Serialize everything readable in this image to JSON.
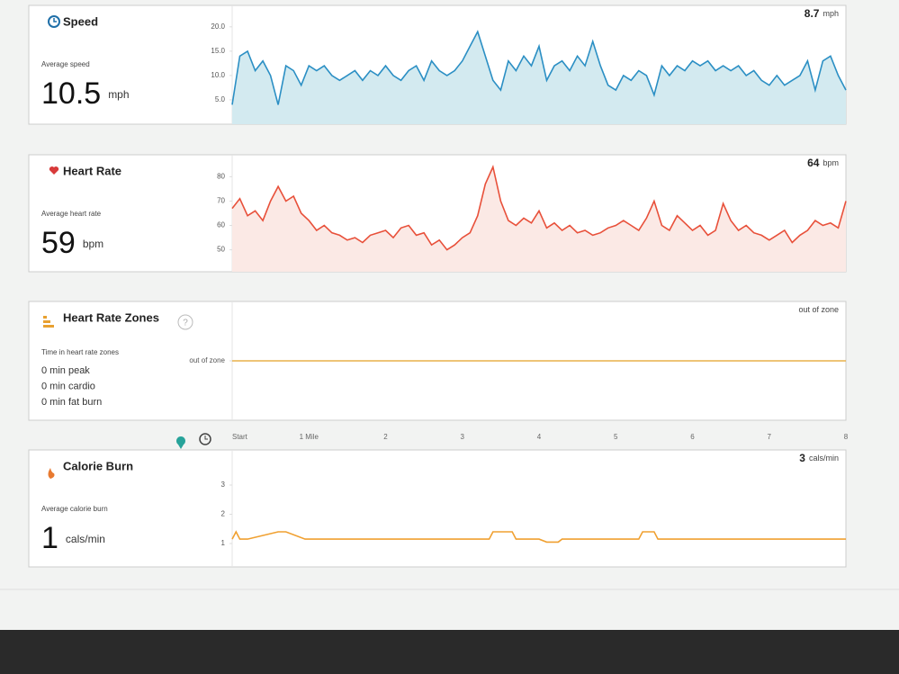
{
  "distance_axis": {
    "xlim": [
      0,
      8
    ],
    "xticks": [
      {
        "value": 0,
        "label": "Start"
      },
      {
        "value": 1,
        "label": "1 Mile"
      },
      2,
      3,
      4,
      5,
      6,
      7,
      8
    ]
  },
  "chart_data": [
    {
      "type": "line",
      "title": "Speed",
      "summary_label": "Average speed",
      "summary_value": 10.5,
      "summary_unit": "mph",
      "current_value": 8.7,
      "current_unit": "mph",
      "color": "#2b8fc4",
      "fill": "#d3eaf0",
      "x": [
        0,
        0.1,
        0.2,
        0.3,
        0.4,
        0.5,
        0.6,
        0.7,
        0.8,
        0.9,
        1,
        1.1,
        1.2,
        1.3,
        1.4,
        1.5,
        1.6,
        1.7,
        1.8,
        1.9,
        2,
        2.1,
        2.2,
        2.3,
        2.4,
        2.5,
        2.6,
        2.7,
        2.8,
        2.9,
        3,
        3.1,
        3.2,
        3.3,
        3.4,
        3.5,
        3.6,
        3.7,
        3.8,
        3.9,
        4,
        4.1,
        4.2,
        4.3,
        4.4,
        4.5,
        4.6,
        4.7,
        4.8,
        4.9,
        5,
        5.1,
        5.2,
        5.3,
        5.4,
        5.5,
        5.6,
        5.7,
        5.8,
        5.9,
        6,
        6.1,
        6.2,
        6.3,
        6.4,
        6.5,
        6.6,
        6.7,
        6.8,
        6.9,
        7,
        7.1,
        7.2,
        7.3,
        7.4,
        7.5,
        7.6,
        7.7,
        7.8,
        7.9,
        8
      ],
      "values": [
        4,
        14,
        15,
        11,
        13,
        10,
        4,
        12,
        11,
        8,
        12,
        11,
        12,
        10,
        9,
        10,
        11,
        9,
        11,
        10,
        12,
        10,
        9,
        11,
        12,
        9,
        13,
        11,
        10,
        11,
        13,
        16,
        19,
        14,
        9,
        7,
        13,
        11,
        14,
        12,
        16,
        9,
        12,
        13,
        11,
        14,
        12,
        17,
        12,
        8,
        7,
        10,
        9,
        11,
        10,
        6,
        12,
        10,
        12,
        11,
        13,
        12,
        13,
        11,
        12,
        11,
        12,
        10,
        11,
        9,
        8,
        10,
        8,
        9,
        10,
        13,
        7,
        13,
        14,
        10,
        7
      ],
      "ylim": [
        0,
        24.4
      ],
      "yticks": [
        {
          "value": 5,
          "label": "5.0"
        },
        {
          "value": 10,
          "label": "10.0"
        },
        {
          "value": 15,
          "label": "15.0"
        },
        {
          "value": 20,
          "label": "20.0"
        }
      ]
    },
    {
      "type": "line",
      "title": "Heart Rate",
      "summary_label": "Average heart rate",
      "summary_value": 59,
      "summary_unit": "bpm",
      "current_value": 64,
      "current_unit": "bpm",
      "color": "#e8503a",
      "fill": "#fbe9e5",
      "x": [
        0,
        0.1,
        0.2,
        0.3,
        0.4,
        0.5,
        0.6,
        0.7,
        0.8,
        0.9,
        1,
        1.1,
        1.2,
        1.3,
        1.4,
        1.5,
        1.6,
        1.7,
        1.8,
        1.9,
        2,
        2.1,
        2.2,
        2.3,
        2.4,
        2.5,
        2.6,
        2.7,
        2.8,
        2.9,
        3,
        3.1,
        3.2,
        3.3,
        3.4,
        3.5,
        3.6,
        3.7,
        3.8,
        3.9,
        4,
        4.1,
        4.2,
        4.3,
        4.4,
        4.5,
        4.6,
        4.7,
        4.8,
        4.9,
        5,
        5.1,
        5.2,
        5.3,
        5.4,
        5.5,
        5.6,
        5.7,
        5.8,
        5.9,
        6,
        6.1,
        6.2,
        6.3,
        6.4,
        6.5,
        6.6,
        6.7,
        6.8,
        6.9,
        7,
        7.1,
        7.2,
        7.3,
        7.4,
        7.5,
        7.6,
        7.7,
        7.8,
        7.9,
        8
      ],
      "values": [
        67,
        71,
        64,
        66,
        62,
        70,
        76,
        70,
        72,
        65,
        62,
        58,
        60,
        57,
        56,
        54,
        55,
        53,
        56,
        57,
        58,
        55,
        59,
        60,
        56,
        57,
        52,
        54,
        50,
        52,
        55,
        57,
        64,
        77,
        84,
        70,
        62,
        60,
        63,
        61,
        66,
        59,
        61,
        58,
        60,
        57,
        58,
        56,
        57,
        59,
        60,
        62,
        60,
        58,
        63,
        70,
        60,
        58,
        64,
        61,
        58,
        60,
        56,
        58,
        69,
        62,
        58,
        60,
        57,
        56,
        54,
        56,
        58,
        53,
        56,
        58,
        62,
        60,
        61,
        59,
        70
      ],
      "ylim": [
        41,
        89
      ],
      "yticks": [
        50,
        60,
        70,
        80
      ]
    },
    {
      "type": "line",
      "title": "Heart Rate Zones",
      "summary_label": "Time in heart rate zones",
      "zone_lines": [
        "0 min peak",
        "0 min cardio",
        "0 min fat burn"
      ],
      "current_value": "out of zone",
      "color": "#e8b04a",
      "x": [
        0,
        8
      ],
      "values": [
        0,
        0
      ],
      "ylim": [
        -1,
        1
      ],
      "yticks": [
        {
          "value": 0,
          "label": "out of zone"
        }
      ]
    },
    {
      "type": "line",
      "title": "Calorie Burn",
      "summary_label": "Average calorie burn",
      "summary_value": 1,
      "summary_unit": "cals/min",
      "current_value": 3,
      "current_unit": "cals/min",
      "color": "#f0a030",
      "x": [
        0,
        0.05,
        0.1,
        0.2,
        0.6,
        0.7,
        0.95,
        1,
        3.35,
        3.4,
        3.65,
        3.7,
        4,
        4.1,
        4.25,
        4.3,
        5.3,
        5.35,
        5.5,
        5.55,
        8
      ],
      "values": [
        1.15,
        1.4,
        1.15,
        1.15,
        1.4,
        1.4,
        1.15,
        1.15,
        1.15,
        1.4,
        1.4,
        1.15,
        1.15,
        1.05,
        1.05,
        1.15,
        1.15,
        1.4,
        1.4,
        1.15,
        1.15
      ],
      "ylim": [
        0.2,
        4.2
      ],
      "yticks": [
        1,
        2,
        3
      ]
    }
  ]
}
